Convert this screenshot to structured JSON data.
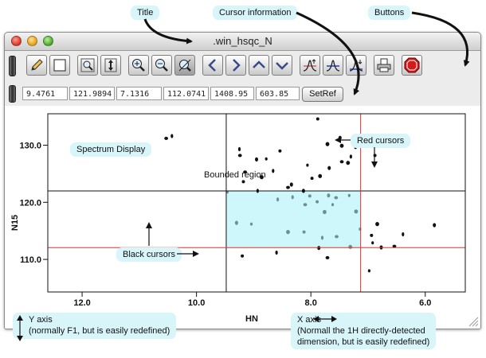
{
  "callouts": {
    "title": "Title",
    "cursor_info": "Cursor information",
    "buttons": "Buttons",
    "spectrum_display": "Spectrum Display",
    "bounded_region": "Bounded region",
    "red_cursors": "Red cursors",
    "black_cursors": "Black cursors",
    "y_axis": "Y axis",
    "y_axis_note": "(normally F1, but is easily redefined)",
    "x_axis": "X axis",
    "x_axis_note_1": "(Normall the 1H directly-detected",
    "x_axis_note_2": "dimension, but is easily redefined)"
  },
  "window": {
    "title": ".win_hsqc_N"
  },
  "toolbar": {
    "buttons": [
      {
        "name": "pencil-button",
        "icon": "pencil-icon"
      },
      {
        "name": "rectangle-button",
        "icon": "rectangle-icon"
      },
      {
        "name": "zoom-box-button",
        "icon": "magnifier-box-icon"
      },
      {
        "name": "zoom-vertical-button",
        "icon": "vertical-zoom-icon"
      },
      {
        "name": "zoom-in-button",
        "icon": "zoom-in-icon"
      },
      {
        "name": "zoom-out-button",
        "icon": "zoom-out-icon"
      },
      {
        "name": "zoom-full-button",
        "icon": "zoom-full-icon"
      },
      {
        "name": "pan-left-button",
        "icon": "chevron-left-icon"
      },
      {
        "name": "pan-right-button",
        "icon": "chevron-right-icon"
      },
      {
        "name": "pan-up-button",
        "icon": "chevron-up-icon"
      },
      {
        "name": "pan-down-button",
        "icon": "chevron-down-icon"
      },
      {
        "name": "contour-up-button",
        "icon": "peak-up-icon"
      },
      {
        "name": "contour-blue-button",
        "icon": "peak-blue-icon"
      },
      {
        "name": "contour-down-button",
        "icon": "peak-down-icon"
      },
      {
        "name": "print-button",
        "icon": "printer-icon"
      },
      {
        "name": "stop-button",
        "icon": "stop-icon"
      }
    ]
  },
  "cursor_info": {
    "values": [
      "9.4761",
      "121.9894",
      "7.1316",
      "112.0741",
      "1408.95",
      "603.85"
    ],
    "setref_label": "SetRef"
  },
  "chart_data": {
    "type": "scatter",
    "xlabel": "HN",
    "ylabel": "N15",
    "xlim": [
      12.6,
      5.3
    ],
    "ylim": [
      135.5,
      104.3
    ],
    "x_ticks": [
      12.0,
      10.0,
      8.0,
      6.0
    ],
    "x_tick_labels": [
      "12.0",
      "10.0",
      "8.0",
      "6.0"
    ],
    "y_ticks": [
      110.0,
      120.0,
      130.0
    ],
    "y_tick_labels": [
      "110.0",
      "120.0",
      "130.0"
    ],
    "black_cursors": {
      "x": 9.48,
      "y": 121.99
    },
    "red_cursors": {
      "x": 7.13,
      "y": 112.07
    },
    "bounded_region": {
      "x": [
        9.48,
        7.13
      ],
      "y": [
        112.07,
        121.99
      ]
    },
    "colors": {
      "red_cursor": "#e03030",
      "black_cursor": "#111111",
      "region": "#cdf7fa",
      "peak": "#111111",
      "region_peak": "#6f9090"
    },
    "peaks": [
      [
        6.98,
        108.0
      ],
      [
        7.86,
        112.0
      ],
      [
        7.71,
        110.3
      ],
      [
        8.6,
        111.2
      ],
      [
        9.2,
        110.6
      ],
      [
        7.31,
        112.2
      ],
      [
        6.92,
        112.9
      ],
      [
        6.77,
        112.1
      ],
      [
        6.54,
        112.3
      ],
      [
        6.39,
        114.4
      ],
      [
        6.94,
        114.2
      ],
      [
        6.84,
        116.2
      ],
      [
        7.14,
        115.3
      ],
      [
        5.84,
        116.0
      ],
      [
        7.55,
        114.0
      ],
      [
        7.8,
        113.8
      ],
      [
        8.12,
        114.8
      ],
      [
        8.4,
        114.8
      ],
      [
        9.04,
        116.2
      ],
      [
        9.3,
        116.4
      ],
      [
        8.1,
        119.6
      ],
      [
        8.58,
        120.5
      ],
      [
        7.89,
        120.1
      ],
      [
        7.76,
        118.3
      ],
      [
        7.62,
        119.6
      ],
      [
        7.69,
        121.2
      ],
      [
        7.56,
        120.8
      ],
      [
        8.32,
        120.9
      ],
      [
        8.02,
        121.1
      ],
      [
        7.21,
        118.4
      ],
      [
        7.33,
        121.2
      ],
      [
        8.13,
        122.0
      ],
      [
        8.4,
        122.6
      ],
      [
        8.93,
        122.0
      ],
      [
        9.18,
        123.6
      ],
      [
        8.86,
        124.4
      ],
      [
        9.46,
        121.8
      ],
      [
        8.34,
        123.1
      ],
      [
        9.15,
        125.3
      ],
      [
        8.66,
        125.5
      ],
      [
        7.98,
        124.2
      ],
      [
        7.84,
        124.6
      ],
      [
        8.06,
        126.5
      ],
      [
        7.68,
        126.0
      ],
      [
        7.46,
        127.1
      ],
      [
        7.3,
        128.0
      ],
      [
        6.88,
        128.2
      ],
      [
        7.35,
        126.9
      ],
      [
        8.78,
        127.6
      ],
      [
        8.95,
        127.5
      ],
      [
        9.24,
        128.2
      ],
      [
        9.25,
        129.3
      ],
      [
        8.54,
        129.0
      ],
      [
        7.46,
        129.9
      ],
      [
        7.22,
        129.6
      ],
      [
        7.49,
        131.3
      ],
      [
        10.53,
        131.2
      ],
      [
        10.43,
        131.6
      ],
      [
        7.88,
        134.6
      ],
      [
        7.71,
        130.2
      ]
    ]
  }
}
